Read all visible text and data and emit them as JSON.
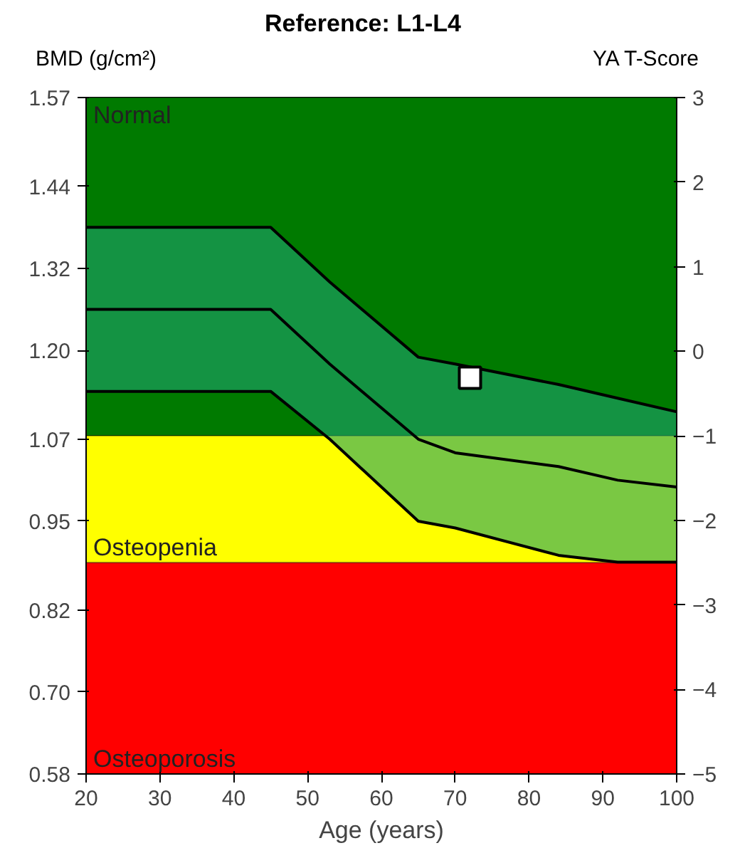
{
  "chart_data": {
    "type": "line",
    "title": "Reference: L1-L4",
    "xlabel": "Age (years)",
    "ylabel": "BMD (g/cm²)",
    "y2label": "YA T-Score",
    "xlim": [
      20,
      100
    ],
    "xticks": [
      20,
      30,
      40,
      50,
      60,
      70,
      80,
      90,
      100
    ],
    "ylim": [
      0.58,
      1.57
    ],
    "yticks": [
      0.58,
      {
        "value": 0.7,
        "label": "0.70"
      },
      0.82,
      0.95,
      1.07,
      {
        "value": 1.2,
        "label": "1.20"
      },
      1.32,
      1.44,
      1.57
    ],
    "y2lim": [
      -5,
      3
    ],
    "y2ticks": [
      -5,
      -4,
      -3,
      -2,
      -1,
      0,
      1,
      2,
      3
    ],
    "bands": [
      {
        "axis": "y2",
        "from": -1,
        "to": 3,
        "label": "Normal",
        "color": "#007a00"
      },
      {
        "axis": "y2",
        "from": -2.5,
        "to": -1,
        "label": "Osteopenia",
        "color": "#ffff00"
      },
      {
        "axis": "y2",
        "from": -5,
        "to": -2.5,
        "label": "Osteoporosis",
        "color": "#ff0000"
      }
    ],
    "series": [
      {
        "color": "#000000",
        "x": [
          20,
          45,
          53,
          65,
          70,
          84,
          92,
          100
        ],
        "values": [
          1.38,
          1.38,
          1.3,
          1.19,
          1.18,
          1.15,
          1.13,
          1.11
        ]
      },
      {
        "color": "#000000",
        "x": [
          20,
          45,
          53,
          65,
          70,
          84,
          92,
          100
        ],
        "values": [
          1.26,
          1.26,
          1.18,
          1.07,
          1.05,
          1.03,
          1.01,
          1.0
        ],
        "lower": [
          1.14,
          1.14,
          1.07,
          0.95,
          0.94,
          0.9,
          0.89,
          0.89
        ],
        "upper": [
          1.38,
          1.38,
          1.3,
          1.19,
          1.18,
          1.15,
          1.13,
          1.11
        ]
      },
      {
        "color": "#000000",
        "x": [
          20,
          45,
          53,
          65,
          70,
          84,
          92,
          100
        ],
        "values": [
          1.14,
          1.14,
          1.07,
          0.95,
          0.94,
          0.9,
          0.89,
          0.89
        ]
      },
      {
        "type": "scatter",
        "color": "#ffffff",
        "x": [
          72
        ],
        "values": [
          1.16
        ],
        "marker": "square"
      }
    ]
  }
}
